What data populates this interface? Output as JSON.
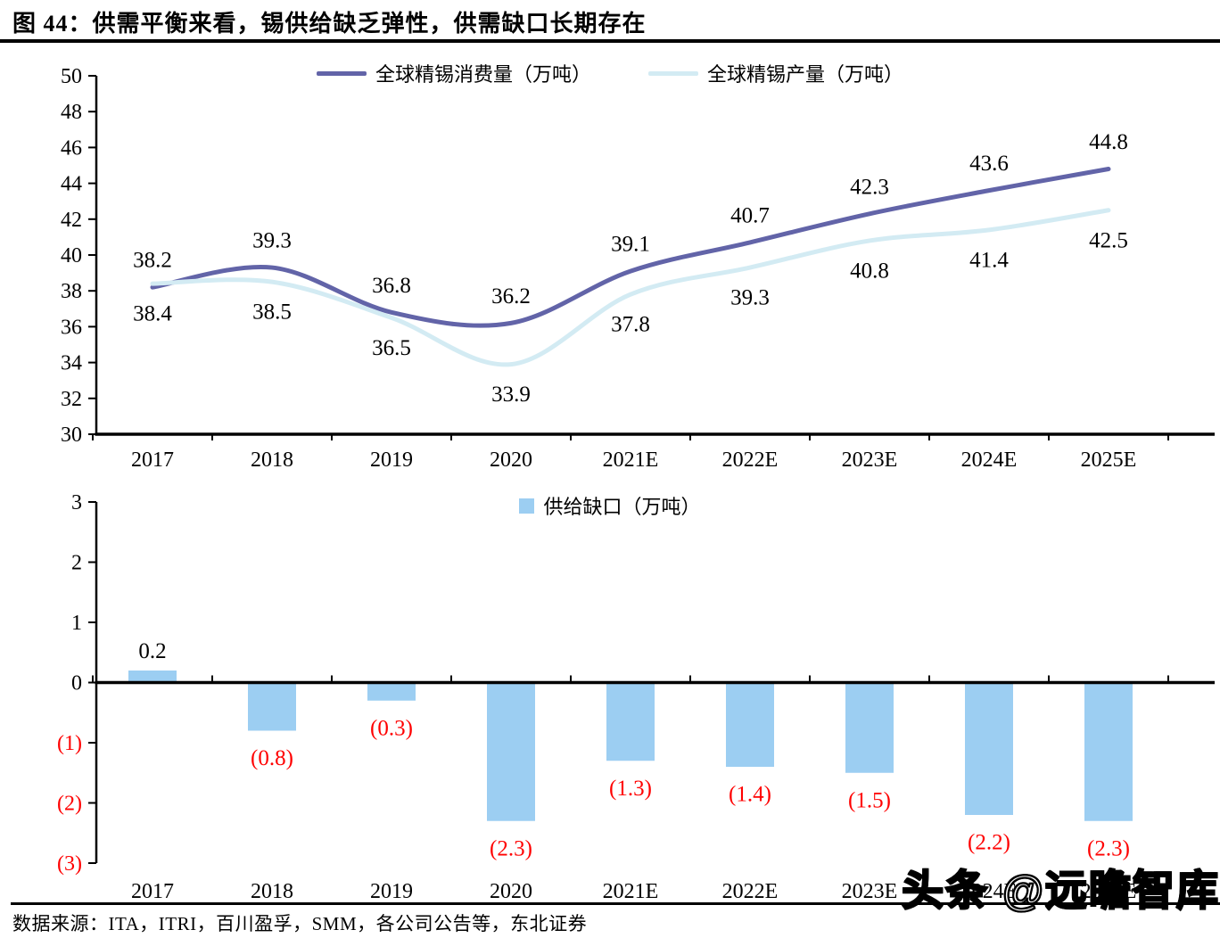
{
  "title": "图 44：供需平衡来看，锡供给缺乏弹性，供需缺口长期存在",
  "source": "数据来源：ITA，ITRI，百川盈孚，SMM，各公司公告等，东北证券",
  "watermark": "头条 @远瞻智库",
  "colors": {
    "consumption_line": "#6264A8",
    "production_line": "#D3EBF3",
    "gap_bar": "#9CCEF2",
    "negative_label": "#FF0000",
    "axis": "#000000"
  },
  "chart_data": [
    {
      "type": "line",
      "categories": [
        "2017",
        "2018",
        "2019",
        "2020",
        "2021E",
        "2022E",
        "2023E",
        "2024E",
        "2025E"
      ],
      "series": [
        {
          "name": "全球精锡消费量（万吨）",
          "color": "#6264A8",
          "values": [
            38.2,
            39.3,
            36.8,
            36.2,
            39.1,
            40.7,
            42.3,
            43.6,
            44.8
          ]
        },
        {
          "name": "全球精锡产量（万吨）",
          "color": "#D3EBF3",
          "values": [
            38.4,
            38.5,
            36.5,
            33.9,
            37.8,
            39.3,
            40.8,
            41.4,
            42.5
          ]
        }
      ],
      "ylim": [
        30,
        50
      ],
      "ytick_labels": [
        "50",
        "48",
        "46",
        "44",
        "42",
        "40",
        "38",
        "36",
        "34",
        "32",
        "30"
      ],
      "grid": false,
      "legend_position": "top"
    },
    {
      "type": "bar",
      "name": "供给缺口（万吨）",
      "categories": [
        "2017",
        "2018",
        "2019",
        "2020",
        "2021E",
        "2022E",
        "2023E",
        "2024E",
        "2025E"
      ],
      "values": [
        0.2,
        -0.8,
        -0.3,
        -2.3,
        -1.3,
        -1.4,
        -1.5,
        -2.2,
        -2.3
      ],
      "labels": [
        "0.2",
        "(0.8)",
        "(0.3)",
        "(2.3)",
        "(1.3)",
        "(1.4)",
        "(1.5)",
        "(2.2)",
        "(2.3)"
      ],
      "ylim": [
        -3,
        3
      ],
      "ytick_labels": [
        "3",
        "2",
        "1",
        "0",
        "(1)",
        "(2)",
        "(3)"
      ],
      "bar_color": "#9CCEF2",
      "negative_label_color": "#FF0000",
      "legend_position": "top"
    }
  ]
}
